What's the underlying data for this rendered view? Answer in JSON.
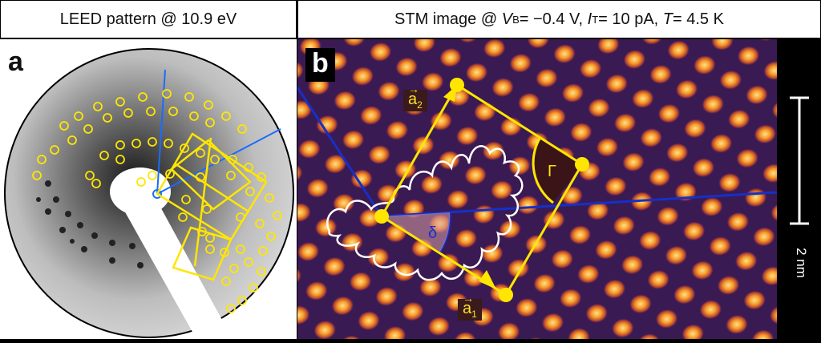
{
  "panel_a": {
    "title": "LEED pattern @ 10.9 eV",
    "letter": "a"
  },
  "panel_b": {
    "title_prefix": "STM image @ ",
    "vb_sym": "V",
    "vb_sub": "B",
    "vb_val": " = −0.4 V, ",
    "it_sym": "I",
    "it_sub": "T",
    "it_val": " = 10 pA, ",
    "t_sym": "T",
    "t_val": " = 4.5 K",
    "letter": "b",
    "vector_a1_base": "a",
    "vector_a1_sub": "1",
    "vector_a2_base": "a",
    "vector_a2_sub": "2",
    "gamma_label": "Γ",
    "delta_label": "δ",
    "scale_bar_label": "2 nm",
    "colors": {
      "yellow": "#ffe600",
      "blue": "#1530c8",
      "white": "#ffffff"
    }
  }
}
